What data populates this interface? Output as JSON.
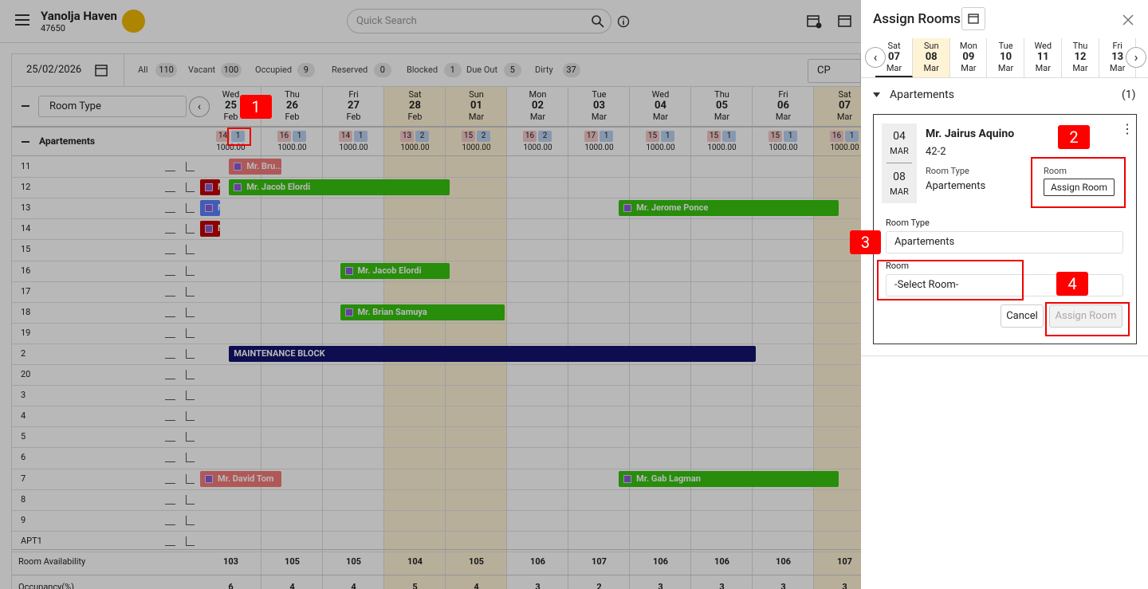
{
  "header": {
    "property": "Yanolja Haven",
    "property_id": "47650",
    "search": "Quick Search"
  },
  "toolbar": {
    "date": "25/02/2026",
    "filters": [
      {
        "label": "All",
        "count": 110
      },
      {
        "label": "Vacant",
        "count": 100
      },
      {
        "label": "Occupied",
        "count": 9
      },
      {
        "label": "Reserved",
        "count": 0
      },
      {
        "label": "Blocked",
        "count": 1
      },
      {
        "label": "Due Out",
        "count": 5
      },
      {
        "label": "Dirty",
        "count": 37
      }
    ],
    "rate_plan": "CP"
  },
  "grid": {
    "group_select": "Room Type",
    "days": [
      {
        "weekday": "Wed",
        "day": "25",
        "month": "Feb",
        "weekend": false
      },
      {
        "weekday": "Thu",
        "day": "26",
        "month": "Feb",
        "weekend": false
      },
      {
        "weekday": "Fri",
        "day": "27",
        "month": "Feb",
        "weekend": false
      },
      {
        "weekday": "Sat",
        "day": "28",
        "month": "Feb",
        "weekend": true
      },
      {
        "weekday": "Sun",
        "day": "01",
        "month": "Mar",
        "weekend": true
      },
      {
        "weekday": "Mon",
        "day": "02",
        "month": "Mar",
        "weekend": false
      },
      {
        "weekday": "Tue",
        "day": "03",
        "month": "Mar",
        "weekend": false
      },
      {
        "weekday": "Wed",
        "day": "04",
        "month": "Mar",
        "weekend": false
      },
      {
        "weekday": "Thu",
        "day": "05",
        "month": "Mar",
        "weekend": false
      },
      {
        "weekday": "Fri",
        "day": "06",
        "month": "Mar",
        "weekend": false
      },
      {
        "weekday": "Sat",
        "day": "07",
        "month": "Mar",
        "weekend": true
      }
    ],
    "group": "Apartements",
    "group_counts": [
      {
        "first": 14,
        "second": 1,
        "price": "1000.00"
      },
      {
        "first": 16,
        "second": 1,
        "price": "1000.00"
      },
      {
        "first": 14,
        "second": 1,
        "price": "1000.00"
      },
      {
        "first": 13,
        "second": 2,
        "price": "1000.00"
      },
      {
        "first": 15,
        "second": 2,
        "price": "1000.00"
      },
      {
        "first": 16,
        "second": 2,
        "price": "1000.00"
      },
      {
        "first": 17,
        "second": 1,
        "price": "1000.00"
      },
      {
        "first": 15,
        "second": 1,
        "price": "1000.00"
      },
      {
        "first": 15,
        "second": 1,
        "price": "1000.00"
      },
      {
        "first": 15,
        "second": 1,
        "price": "1000.00"
      },
      {
        "first": 16,
        "second": 1,
        "price": "1000.00"
      }
    ],
    "rooms": [
      "11",
      "12",
      "13",
      "14",
      "15",
      "16",
      "17",
      "18",
      "19",
      "2",
      "20",
      "3",
      "4",
      "5",
      "6",
      "7",
      "8",
      "9",
      "APT1"
    ],
    "bookings": [
      {
        "room": "11",
        "guest": "Mr. Bru...",
        "color": "#f47b7b"
      },
      {
        "room": "12",
        "guest": "M",
        "color": "#c40000"
      },
      {
        "room": "12",
        "guest": "Mr. Jacob Elordi",
        "color": "#36c410"
      },
      {
        "room": "13",
        "guest": "M",
        "color": "#5b80ff"
      },
      {
        "room": "13",
        "guest": "Mr. Jerome Ponce",
        "color": "#36c410"
      },
      {
        "room": "14",
        "guest": "M",
        "color": "#c40000"
      },
      {
        "room": "16",
        "guest": "Mr. Jacob Elordi",
        "color": "#36c410"
      },
      {
        "room": "18",
        "guest": "Mr. Brian Samuya",
        "color": "#36c410"
      },
      {
        "room": "2",
        "guest": "MAINTENANCE BLOCK",
        "color": "#12126f"
      },
      {
        "room": "7",
        "guest": "Mr. David Tom",
        "color": "#f47b7b"
      },
      {
        "room": "7",
        "guest": "Mr. Gab Lagman",
        "color": "#36c410"
      }
    ],
    "footer": [
      {
        "label": "Room Availability",
        "values": [
          103,
          105,
          105,
          104,
          105,
          106,
          107,
          106,
          106,
          106,
          107
        ]
      },
      {
        "label": "Occupancy(%)",
        "values": [
          6,
          4,
          4,
          5,
          4,
          3,
          2,
          3,
          3,
          3,
          3
        ]
      }
    ]
  },
  "panel": {
    "title": "Assign Rooms",
    "dates": [
      {
        "weekday": "Sat",
        "day": "07",
        "month": "Mar",
        "weekend": false,
        "selected": true
      },
      {
        "weekday": "Sun",
        "day": "08",
        "month": "Mar",
        "weekend": true,
        "selected": false
      },
      {
        "weekday": "Mon",
        "day": "09",
        "month": "Mar",
        "weekend": false,
        "selected": false
      },
      {
        "weekday": "Tue",
        "day": "10",
        "month": "Mar",
        "weekend": false,
        "selected": false
      },
      {
        "weekday": "Wed",
        "day": "11",
        "month": "Mar",
        "weekend": false,
        "selected": false
      },
      {
        "weekday": "Thu",
        "day": "12",
        "month": "Mar",
        "weekend": false,
        "selected": false
      },
      {
        "weekday": "Fri",
        "day": "13",
        "month": "Mar",
        "weekend": false,
        "selected": false
      }
    ],
    "section": "Apartements",
    "section_count": "(1)",
    "card": {
      "arrival_day": "04",
      "arrival_month": "MAR",
      "departure_day": "08",
      "departure_month": "MAR",
      "guest": "Mr. Jairus Aquino",
      "reservation": "42-2",
      "room_type_label": "Room Type",
      "room_type": "Apartements",
      "room_label": "Room",
      "room_button": "Assign Room",
      "form_room_type_label": "Room Type",
      "form_room_type": "Apartements",
      "form_room_label": "Room",
      "form_room": "-Select Room-",
      "cancel": "Cancel",
      "submit": "Assign Room"
    }
  },
  "annotations": [
    "1",
    "2",
    "3",
    "4"
  ]
}
